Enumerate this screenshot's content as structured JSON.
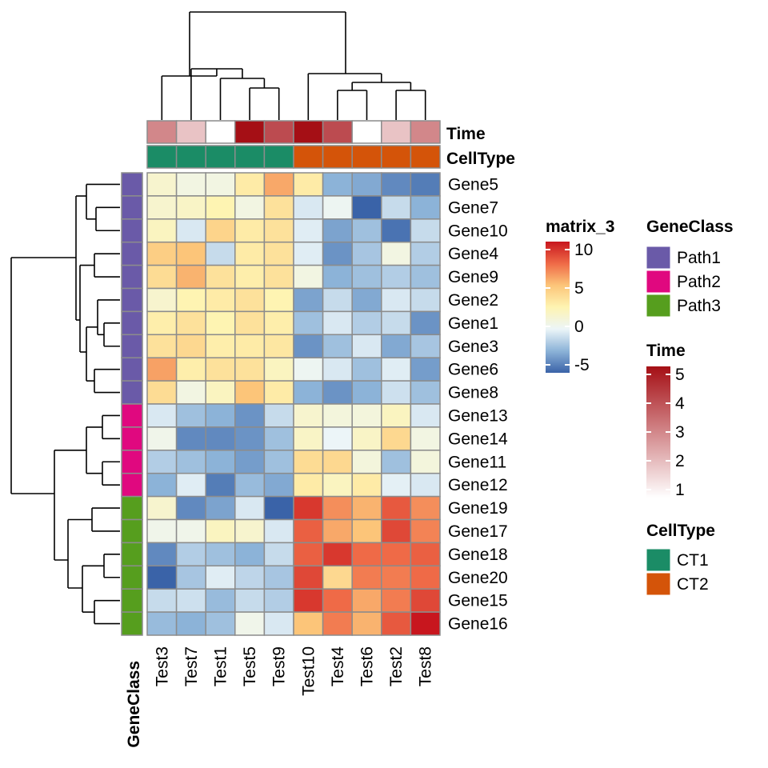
{
  "chart_data": {
    "type": "heatmap",
    "rows": [
      "Gene5",
      "Gene7",
      "Gene10",
      "Gene4",
      "Gene9",
      "Gene2",
      "Gene1",
      "Gene3",
      "Gene6",
      "Gene8",
      "Gene13",
      "Gene14",
      "Gene11",
      "Gene12",
      "Gene19",
      "Gene17",
      "Gene18",
      "Gene20",
      "Gene15",
      "Gene16"
    ],
    "columns": [
      "Test3",
      "Test7",
      "Test1",
      "Test5",
      "Test9",
      "Test10",
      "Test4",
      "Test6",
      "Test2",
      "Test8"
    ],
    "values": [
      [
        1.5,
        0.8,
        0.8,
        3.0,
        5.8,
        3.0,
        -2.5,
        -2.8,
        -3.8,
        -4.2
      ],
      [
        1.5,
        1.8,
        2.5,
        0.8,
        3.5,
        -0.5,
        0.2,
        -5.0,
        -1.0,
        -2.5
      ],
      [
        2.0,
        -0.5,
        4.2,
        3.0,
        3.5,
        -0.3,
        -3.0,
        -2.0,
        -4.5,
        -1.0
      ],
      [
        4.5,
        5.0,
        -1.0,
        3.0,
        3.5,
        -0.3,
        -3.5,
        -1.8,
        0.8,
        -1.5
      ],
      [
        3.8,
        5.5,
        3.5,
        2.8,
        3.5,
        0.8,
        -2.5,
        -2.0,
        -1.5,
        -2.0
      ],
      [
        1.5,
        2.5,
        3.0,
        3.5,
        2.5,
        -3.0,
        -1.0,
        -2.8,
        -0.5,
        -1.0
      ],
      [
        2.8,
        3.5,
        2.5,
        3.5,
        2.8,
        -2.0,
        -0.5,
        -1.5,
        -1.0,
        -3.5
      ],
      [
        3.5,
        4.0,
        2.8,
        3.0,
        3.2,
        -3.5,
        -2.0,
        -0.5,
        -2.8,
        -1.8
      ],
      [
        6.0,
        2.8,
        3.5,
        3.5,
        2.0,
        0.2,
        -0.5,
        -2.0,
        -0.3,
        -3.2
      ],
      [
        3.8,
        0.8,
        2.0,
        5.0,
        3.0,
        -2.5,
        -3.5,
        -2.5,
        -0.8,
        -2.0
      ],
      [
        -0.5,
        -2.0,
        -2.5,
        -3.5,
        -1.0,
        1.5,
        1.0,
        1.0,
        2.0,
        -0.5
      ],
      [
        0.5,
        -3.8,
        -3.8,
        -3.5,
        -2.0,
        1.8,
        0.0,
        1.8,
        4.0,
        0.8
      ],
      [
        -1.5,
        -2.0,
        -2.5,
        -3.2,
        -2.0,
        3.8,
        4.0,
        1.0,
        -2.0,
        1.0
      ],
      [
        -2.5,
        -0.3,
        -4.2,
        -2.2,
        -2.8,
        3.0,
        2.0,
        3.0,
        -0.2,
        -0.5
      ],
      [
        1.5,
        -3.8,
        -3.0,
        -0.5,
        -5.0,
        9.0,
        6.5,
        5.5,
        8.0,
        6.5
      ],
      [
        0.5,
        0.5,
        2.0,
        1.5,
        -0.5,
        7.8,
        5.8,
        5.0,
        8.5,
        6.8
      ],
      [
        -3.8,
        -1.5,
        -2.0,
        -2.5,
        -1.0,
        7.8,
        9.0,
        7.5,
        7.5,
        7.8
      ],
      [
        -5.0,
        -1.8,
        -0.3,
        -1.2,
        -1.8,
        8.5,
        4.0,
        7.0,
        7.0,
        7.5
      ],
      [
        -1.0,
        -0.8,
        -2.2,
        -1.0,
        -1.5,
        9.0,
        7.5,
        5.8,
        7.0,
        8.5
      ],
      [
        -2.2,
        -2.5,
        -2.0,
        0.5,
        -0.5,
        5.0,
        7.0,
        5.5,
        8.0,
        10.0
      ]
    ],
    "value_range": [
      -5,
      10
    ],
    "color_stops": [
      {
        "v": -5,
        "c": "#3a63a8"
      },
      {
        "v": -2.5,
        "c": "#8cb3d8"
      },
      {
        "v": 0,
        "c": "#ecf5f8"
      },
      {
        "v": 2.5,
        "c": "#fef4b2"
      },
      {
        "v": 5,
        "c": "#fcc579"
      },
      {
        "v": 7.5,
        "c": "#ef6a47"
      },
      {
        "v": 10,
        "c": "#c8161e"
      }
    ],
    "cell_border_color": "#8c8c8c",
    "top_annotations": {
      "time": {
        "label": "Time",
        "values": [
          3,
          2,
          1,
          5,
          4,
          5,
          4,
          1,
          2,
          3
        ]
      },
      "celltype": {
        "label": "CellType",
        "values": [
          "CT1",
          "CT1",
          "CT1",
          "CT1",
          "CT1",
          "CT2",
          "CT2",
          "CT2",
          "CT2",
          "CT2"
        ]
      }
    },
    "left_annotation": {
      "label": "GeneClass",
      "values": [
        "Path1",
        "Path1",
        "Path1",
        "Path1",
        "Path1",
        "Path1",
        "Path1",
        "Path1",
        "Path1",
        "Path1",
        "Path2",
        "Path2",
        "Path2",
        "Path2",
        "Path3",
        "Path3",
        "Path3",
        "Path3",
        "Path3",
        "Path3"
      ]
    },
    "legends": {
      "matrix": {
        "title": "matrix_3",
        "ticks": [
          "10",
          "5",
          "0",
          "-5"
        ]
      },
      "geneclass": {
        "title": "GeneClass",
        "items": [
          {
            "label": "Path1",
            "color": "#6a5aa8"
          },
          {
            "label": "Path2",
            "color": "#e0087f"
          },
          {
            "label": "Path3",
            "color": "#569e1e"
          }
        ]
      },
      "time": {
        "title": "Time",
        "ticks": [
          "5",
          "4",
          "3",
          "2",
          "1"
        ],
        "colors": [
          "#a50f15",
          "#ffffff"
        ]
      },
      "celltype": {
        "title": "CellType",
        "items": [
          {
            "label": "CT1",
            "color": "#1b8c66"
          },
          {
            "label": "CT2",
            "color": "#d45409"
          }
        ]
      }
    }
  }
}
